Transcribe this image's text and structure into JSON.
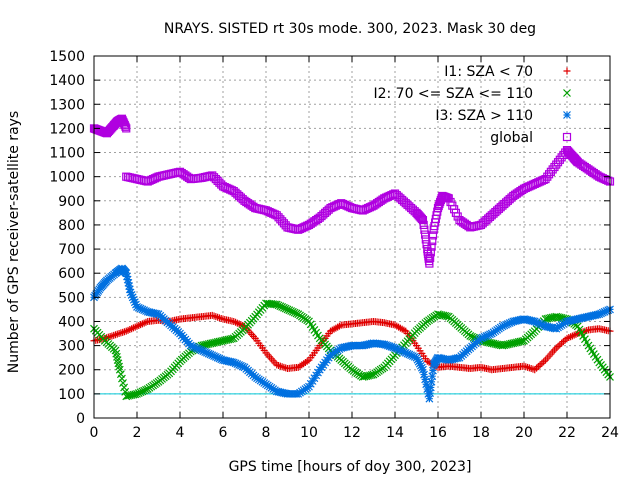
{
  "chart_data": {
    "type": "scatter",
    "title": "NRAYS. SISTED rt 30s mode. 300, 2023. Mask 30 deg",
    "xlabel": "GPS time [hours of doy 300, 2023]",
    "ylabel": "Number of GPS receiver-satellite rays",
    "xlim": [
      0,
      24
    ],
    "ylim": [
      0,
      1500
    ],
    "xticks": [
      0,
      2,
      4,
      6,
      8,
      10,
      12,
      14,
      16,
      18,
      20,
      22,
      24
    ],
    "yticks": [
      0,
      100,
      200,
      300,
      400,
      500,
      600,
      700,
      800,
      900,
      1000,
      1100,
      1200,
      1300,
      1400,
      1500
    ],
    "grid": true,
    "legend_position": "top-right",
    "reference_line": {
      "y": 100,
      "color": "#00c8d8"
    },
    "series": [
      {
        "name": "I1: SZA < 70",
        "marker": "+",
        "color": "#e00000",
        "x": [
          0.0,
          0.5,
          1.0,
          1.5,
          2.0,
          2.5,
          3.0,
          3.5,
          4.0,
          4.5,
          5.0,
          5.5,
          6.0,
          6.5,
          7.0,
          7.5,
          8.0,
          8.5,
          9.0,
          9.5,
          10.0,
          10.5,
          11.0,
          11.5,
          12.0,
          12.5,
          13.0,
          13.5,
          14.0,
          14.5,
          15.0,
          15.5,
          16.0,
          16.5,
          17.0,
          17.5,
          18.0,
          18.5,
          19.0,
          19.5,
          20.0,
          20.5,
          21.0,
          21.5,
          22.0,
          22.5,
          23.0,
          23.5,
          24.0
        ],
        "y": [
          320,
          330,
          345,
          360,
          380,
          400,
          405,
          400,
          410,
          415,
          420,
          425,
          410,
          400,
          380,
          330,
          270,
          220,
          205,
          210,
          240,
          300,
          360,
          385,
          390,
          395,
          400,
          395,
          385,
          360,
          300,
          235,
          210,
          215,
          210,
          205,
          210,
          200,
          205,
          210,
          215,
          200,
          240,
          290,
          330,
          350,
          365,
          370,
          360
        ]
      },
      {
        "name": "I2: 70 <= SZA <= 110",
        "marker": "x",
        "color": "#00a000",
        "x": [
          0.0,
          0.5,
          1.0,
          1.2,
          1.5,
          2.0,
          2.5,
          3.0,
          3.5,
          4.0,
          4.5,
          5.0,
          5.5,
          6.0,
          6.5,
          7.0,
          7.5,
          8.0,
          8.5,
          9.0,
          9.5,
          10.0,
          10.5,
          11.0,
          11.5,
          12.0,
          12.5,
          13.0,
          13.5,
          14.0,
          14.5,
          15.0,
          15.5,
          16.0,
          16.5,
          17.0,
          17.5,
          18.0,
          18.5,
          19.0,
          19.5,
          20.0,
          20.5,
          21.0,
          21.5,
          22.0,
          22.5,
          23.0,
          23.5,
          24.0
        ],
        "y": [
          370,
          320,
          280,
          200,
          90,
          100,
          120,
          150,
          185,
          235,
          275,
          300,
          310,
          320,
          330,
          370,
          420,
          475,
          470,
          450,
          430,
          400,
          330,
          280,
          240,
          200,
          170,
          180,
          210,
          260,
          310,
          360,
          400,
          430,
          420,
          380,
          340,
          320,
          310,
          300,
          310,
          320,
          360,
          410,
          420,
          410,
          380,
          300,
          230,
          170
        ]
      },
      {
        "name": "I3: SZA > 110",
        "marker": "*",
        "color": "#0070e0",
        "x": [
          0.0,
          0.3,
          0.6,
          1.0,
          1.3,
          1.5,
          1.7,
          2.0,
          2.5,
          3.0,
          3.5,
          4.0,
          4.5,
          5.0,
          5.5,
          6.0,
          6.5,
          7.0,
          7.5,
          8.0,
          8.5,
          9.0,
          9.5,
          10.0,
          10.5,
          11.0,
          11.5,
          12.0,
          12.5,
          13.0,
          13.5,
          14.0,
          14.5,
          15.0,
          15.3,
          15.6,
          15.8,
          16.0,
          16.5,
          17.0,
          17.5,
          18.0,
          18.5,
          19.0,
          19.5,
          20.0,
          20.5,
          21.0,
          21.5,
          22.0,
          22.5,
          23.0,
          23.5,
          24.0
        ],
        "y": [
          500,
          540,
          570,
          600,
          620,
          600,
          520,
          460,
          440,
          430,
          390,
          350,
          300,
          280,
          260,
          240,
          230,
          210,
          170,
          140,
          110,
          100,
          100,
          130,
          200,
          260,
          290,
          300,
          300,
          310,
          305,
          290,
          270,
          250,
          200,
          80,
          220,
          250,
          240,
          250,
          290,
          330,
          350,
          380,
          400,
          410,
          400,
          380,
          370,
          400,
          410,
          420,
          430,
          450
        ]
      },
      {
        "name": "global",
        "marker": "square",
        "color": "#b000e0",
        "x": [
          0.0,
          0.3,
          0.6,
          0.9,
          1.1,
          1.3,
          1.5,
          1.5,
          2.0,
          2.5,
          3.0,
          3.5,
          4.0,
          4.5,
          5.0,
          5.5,
          6.0,
          6.5,
          7.0,
          7.5,
          8.0,
          8.5,
          9.0,
          9.5,
          10.0,
          10.5,
          11.0,
          11.5,
          12.0,
          12.5,
          13.0,
          13.5,
          14.0,
          14.5,
          15.0,
          15.3,
          15.5,
          15.6,
          15.8,
          16.0,
          16.2,
          16.5,
          17.0,
          17.5,
          18.0,
          18.5,
          19.0,
          19.5,
          20.0,
          20.5,
          21.0,
          21.5,
          22.0,
          22.3,
          22.5,
          23.0,
          23.5,
          24.0
        ],
        "y": [
          1200,
          1190,
          1180,
          1210,
          1230,
          1240,
          1200,
          1000,
          990,
          980,
          1000,
          1010,
          1020,
          990,
          995,
          1005,
          960,
          940,
          900,
          870,
          860,
          840,
          790,
          780,
          800,
          830,
          870,
          890,
          870,
          860,
          880,
          910,
          930,
          890,
          850,
          820,
          700,
          640,
          780,
          870,
          920,
          910,
          820,
          790,
          800,
          840,
          880,
          920,
          950,
          970,
          990,
          1050,
          1110,
          1080,
          1060,
          1030,
          1000,
          980
        ]
      }
    ]
  }
}
